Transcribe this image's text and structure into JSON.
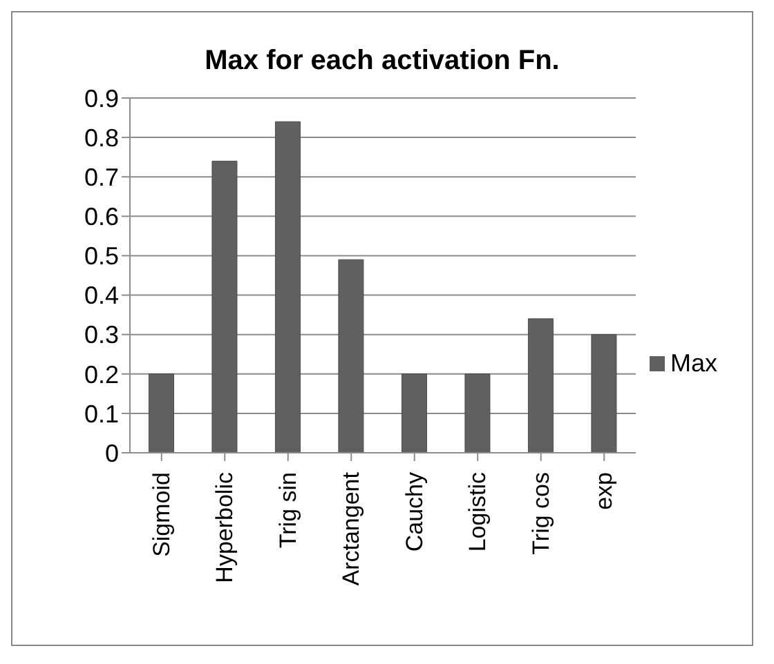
{
  "chart_data": {
    "type": "bar",
    "title": "Max for each activation Fn.",
    "categories": [
      "Sigmoid",
      "Hyperbolic",
      "Trig sin",
      "Arctangent",
      "Cauchy",
      "Logistic",
      "Trig cos",
      "exp"
    ],
    "series": [
      {
        "name": "Max",
        "color": "#606060",
        "values": [
          0.2,
          0.74,
          0.84,
          0.49,
          0.2,
          0.2,
          0.34,
          0.3
        ]
      }
    ],
    "ylim": [
      0,
      0.9
    ],
    "yticks": [
      0,
      0.1,
      0.2,
      0.3,
      0.4,
      0.5,
      0.6,
      0.7,
      0.8,
      0.9
    ],
    "grid": "y",
    "legend": "right"
  }
}
